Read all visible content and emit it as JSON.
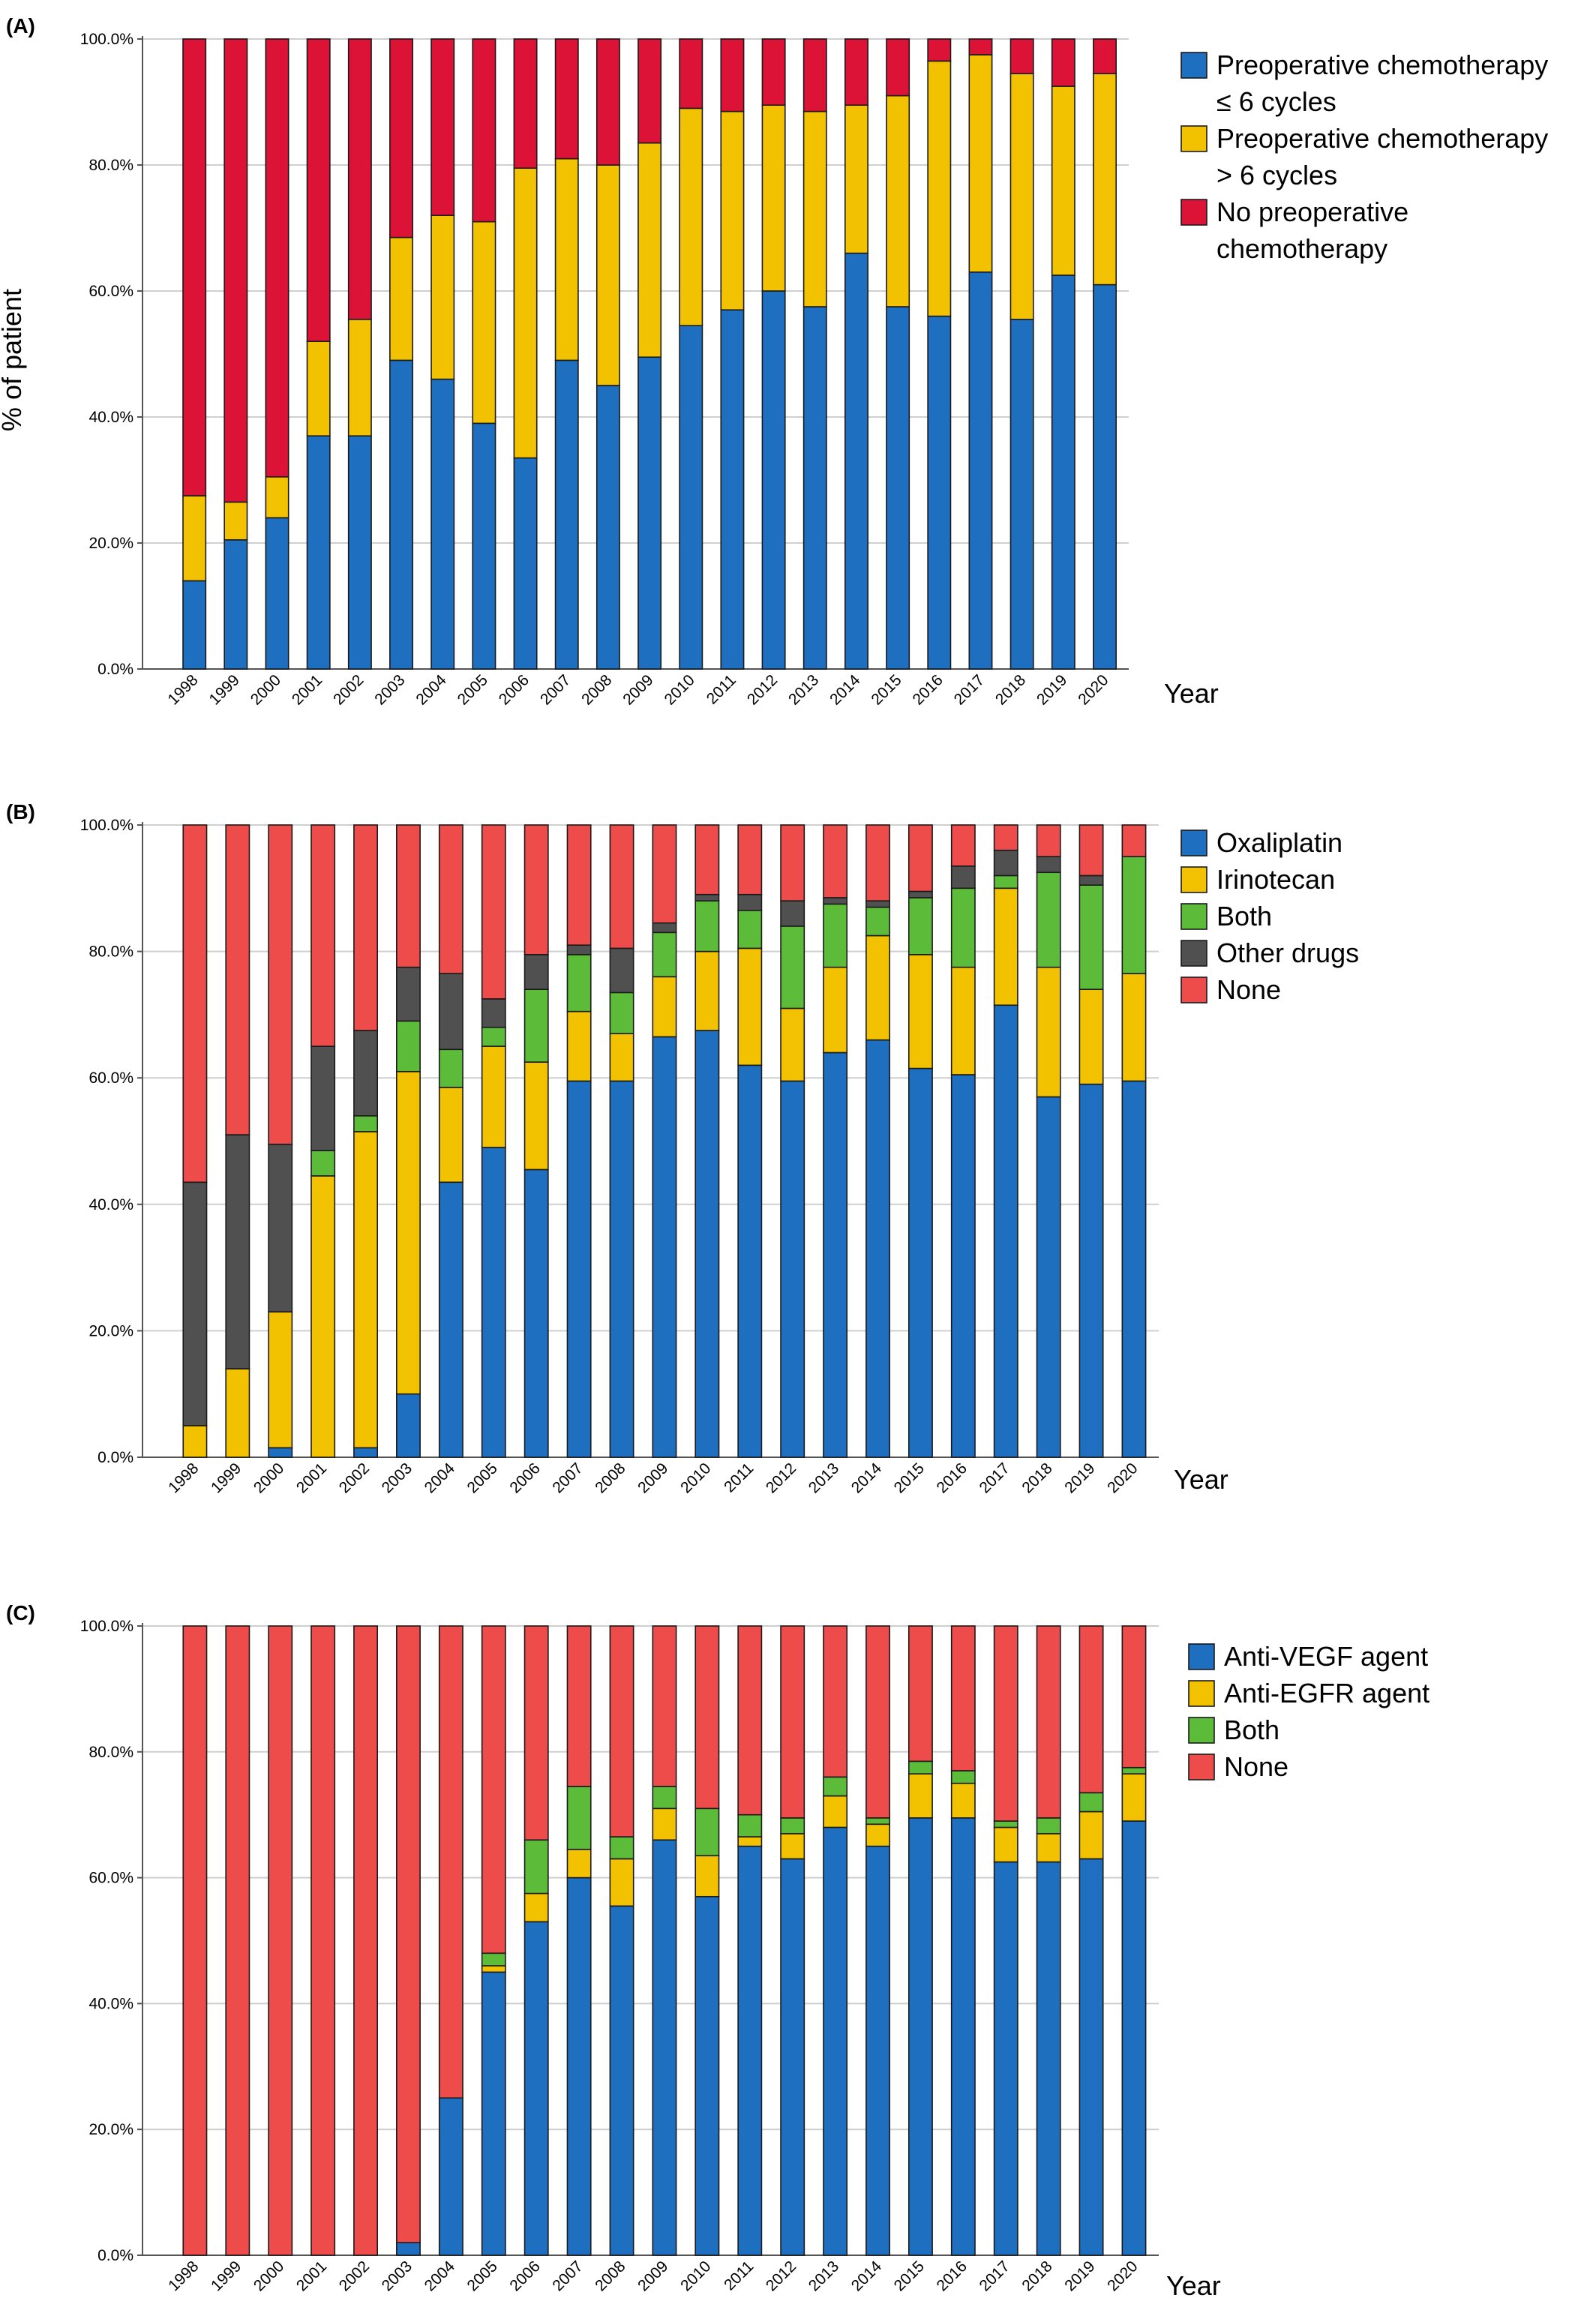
{
  "chart_data": [
    {
      "type": "bar",
      "stacked": true,
      "panel_label": "(A)",
      "ylabel": "% of patient",
      "xlabel": "Year",
      "ylim": [
        0,
        100
      ],
      "y_tick_labels": [
        "0.0%",
        "20.0%",
        "40.0%",
        "60.0%",
        "80.0%",
        "100.0%"
      ],
      "grid": true,
      "legend_position": "right",
      "categories": [
        "1998",
        "1999",
        "2000",
        "2001",
        "2002",
        "2003",
        "2004",
        "2005",
        "2006",
        "2007",
        "2008",
        "2009",
        "2010",
        "2011",
        "2012",
        "2013",
        "2014",
        "2015",
        "2016",
        "2017",
        "2018",
        "2019",
        "2020"
      ],
      "series": [
        {
          "name": "Preoperative chemotherapy\n≤ 6 cycles",
          "color": "#1f6fc0",
          "values": [
            14,
            20.5,
            24,
            37,
            37,
            49,
            46,
            39,
            33.5,
            49,
            45,
            49.5,
            54.5,
            57,
            60,
            57.5,
            66,
            57.5,
            56,
            63,
            55.5,
            62.5,
            61
          ]
        },
        {
          "name": "Preoperative chemotherapy\n> 6 cycles",
          "color": "#f2c200",
          "values": [
            13.5,
            6,
            6.5,
            15,
            18.5,
            19.5,
            26,
            32,
            46,
            32,
            35,
            34,
            34.5,
            31.5,
            29.5,
            31,
            23.5,
            33.5,
            40.5,
            34.5,
            39,
            30,
            33.5
          ]
        },
        {
          "name": "No preoperative\nchemotherapy",
          "color": "#dc1237",
          "values": [
            72.5,
            73.5,
            69.5,
            48,
            44.5,
            31.5,
            28,
            29,
            20.5,
            19,
            20,
            16.5,
            11,
            11.5,
            10.5,
            11.5,
            10.5,
            9,
            3.5,
            2.5,
            5.5,
            7.5,
            5.5
          ]
        }
      ]
    },
    {
      "type": "bar",
      "stacked": true,
      "panel_label": "(B)",
      "ylabel": "",
      "xlabel": "Year",
      "ylim": [
        0,
        100
      ],
      "y_tick_labels": [
        "0.0%",
        "20.0%",
        "40.0%",
        "60.0%",
        "80.0%",
        "100.0%"
      ],
      "grid": true,
      "legend_position": "right",
      "categories": [
        "1998",
        "1999",
        "2000",
        "2001",
        "2002",
        "2003",
        "2004",
        "2005",
        "2006",
        "2007",
        "2008",
        "2009",
        "2010",
        "2011",
        "2012",
        "2013",
        "2014",
        "2015",
        "2016",
        "2017",
        "2018",
        "2019",
        "2020"
      ],
      "series": [
        {
          "name": "Oxaliplatin",
          "color": "#1f6fc0",
          "values": [
            0,
            0,
            1.5,
            0,
            1.5,
            10,
            43.5,
            49,
            45.5,
            59.5,
            59.5,
            66.5,
            67.5,
            62,
            59.5,
            64,
            66,
            61.5,
            60.5,
            71.5,
            57,
            59,
            59.5
          ]
        },
        {
          "name": "Irinotecan",
          "color": "#f2c200",
          "values": [
            5,
            14,
            21.5,
            44.5,
            50,
            51,
            15,
            16,
            17,
            11,
            7.5,
            9.5,
            12.5,
            18.5,
            11.5,
            13.5,
            16.5,
            18,
            17,
            18.5,
            20.5,
            15,
            17
          ]
        },
        {
          "name": "Both",
          "color": "#5dbb3a",
          "values": [
            0,
            0,
            0,
            4,
            2.5,
            8,
            6,
            3,
            11.5,
            9,
            6.5,
            7,
            8,
            6,
            13,
            10,
            4.5,
            9,
            12.5,
            2,
            15,
            16.5,
            18.5
          ]
        },
        {
          "name": "Other drugs",
          "color": "#505050",
          "values": [
            38.5,
            37,
            26.5,
            16.5,
            13.5,
            8.5,
            12,
            4.5,
            5.5,
            1.5,
            7,
            1.5,
            1,
            2.5,
            4,
            1,
            1,
            1,
            3.5,
            4,
            2.5,
            1.5,
            0
          ]
        },
        {
          "name": "None",
          "color": "#ee4b4b",
          "values": [
            56.5,
            49,
            50.5,
            35,
            32.5,
            22.5,
            23.5,
            27.5,
            20.5,
            19,
            19.5,
            15.5,
            11,
            11,
            12,
            11.5,
            12,
            10.5,
            6.5,
            4,
            5,
            8,
            5
          ]
        }
      ]
    },
    {
      "type": "bar",
      "stacked": true,
      "panel_label": "(C)",
      "ylabel": "",
      "xlabel": "Year",
      "ylim": [
        0,
        100
      ],
      "y_tick_labels": [
        "0.0%",
        "20.0%",
        "40.0%",
        "60.0%",
        "80.0%",
        "100.0%"
      ],
      "grid": true,
      "legend_position": "right",
      "categories": [
        "1998",
        "1999",
        "2000",
        "2001",
        "2002",
        "2003",
        "2004",
        "2005",
        "2006",
        "2007",
        "2008",
        "2009",
        "2010",
        "2011",
        "2012",
        "2013",
        "2014",
        "2015",
        "2016",
        "2017",
        "2018",
        "2019",
        "2020"
      ],
      "series": [
        {
          "name": "Anti-VEGF  agent",
          "color": "#1f6fc0",
          "values": [
            0,
            0,
            0,
            0,
            0,
            2,
            25,
            45,
            53,
            60,
            55.5,
            66,
            57,
            65,
            63,
            68,
            65,
            69.5,
            69.5,
            62.5,
            62.5,
            63,
            69
          ]
        },
        {
          "name": "Anti-EGFR  agent",
          "color": "#f2c200",
          "values": [
            0,
            0,
            0,
            0,
            0,
            0,
            0,
            1,
            4.5,
            4.5,
            7.5,
            5,
            6.5,
            1.5,
            4,
            5,
            3.5,
            7,
            5.5,
            5.5,
            4.5,
            7.5,
            7.5
          ]
        },
        {
          "name": "Both",
          "color": "#5dbb3a",
          "values": [
            0,
            0,
            0,
            0,
            0,
            0,
            0,
            2,
            8.5,
            10,
            3.5,
            3.5,
            7.5,
            3.5,
            2.5,
            3,
            1,
            2,
            2,
            1,
            2.5,
            3,
            1
          ]
        },
        {
          "name": "None",
          "color": "#ee4b4b",
          "values": [
            100,
            100,
            100,
            100,
            100,
            98,
            75,
            52,
            34,
            25.5,
            33.5,
            25.5,
            29,
            30,
            30.5,
            24,
            30.5,
            21.5,
            23,
            31,
            30.5,
            26.5,
            22.5
          ]
        }
      ]
    }
  ]
}
